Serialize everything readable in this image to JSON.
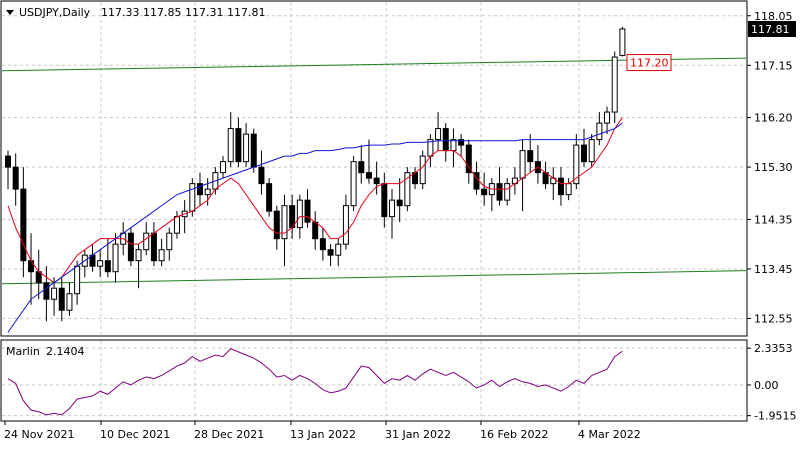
{
  "header": {
    "symbol": "USDJPY,Daily",
    "ohlc": "117.33 117.85 117.31 117.81"
  },
  "price_axis": {
    "ticks": [
      "118.05",
      "117.15",
      "116.20",
      "115.30",
      "114.35",
      "113.45",
      "112.55"
    ],
    "current_price": "117.81",
    "level_label": "117.20"
  },
  "indicator": {
    "name": "Marlin",
    "value": "2.1404",
    "ticks": [
      "2.3353",
      "0.00",
      "-1.9515"
    ]
  },
  "time_axis": {
    "labels": [
      "24 Nov 2021",
      "10 Dec 2021",
      "28 Dec 2021",
      "13 Jan 2022",
      "31 Jan 2022",
      "16 Feb 2022",
      "4 Mar 2022"
    ]
  },
  "colors": {
    "background": "#ffffff",
    "candle": "#000000",
    "ma_fast": "#e8001c",
    "ma_slow": "#1414d2",
    "channel": "#1e7d1e",
    "oscillator": "#800080",
    "level_label": "#e00000",
    "grid": "#c8c8c8"
  },
  "chart_data": [
    {
      "type": "candlestick",
      "symbol": "USDJPY",
      "timeframe": "Daily",
      "ylim": [
        112.25,
        118.3
      ],
      "yticks": [
        118.05,
        117.15,
        116.2,
        115.3,
        114.35,
        113.45,
        112.55
      ],
      "grid": true,
      "overlays": [
        "red moving average",
        "blue moving average",
        "green upper channel line",
        "green lower channel line"
      ],
      "candles": [
        [
          115.5,
          115.6,
          114.9,
          115.3
        ],
        [
          115.3,
          115.55,
          114.6,
          114.9
        ],
        [
          114.9,
          115.3,
          113.3,
          113.6
        ],
        [
          113.6,
          114.1,
          112.8,
          113.4
        ],
        [
          113.4,
          113.8,
          112.9,
          113.2
        ],
        [
          113.2,
          113.5,
          112.5,
          112.9
        ],
        [
          112.9,
          113.3,
          112.6,
          113.1
        ],
        [
          113.1,
          113.3,
          112.5,
          112.7
        ],
        [
          112.7,
          113.2,
          112.6,
          113.0
        ],
        [
          113.0,
          113.6,
          112.8,
          113.5
        ],
        [
          113.5,
          113.8,
          113.3,
          113.7
        ],
        [
          113.7,
          113.9,
          113.4,
          113.5
        ],
        [
          113.5,
          113.8,
          113.3,
          113.6
        ],
        [
          113.6,
          114.0,
          113.3,
          113.4
        ],
        [
          113.4,
          114.1,
          113.2,
          113.9
        ],
        [
          113.9,
          114.3,
          113.7,
          114.1
        ],
        [
          114.1,
          114.2,
          113.5,
          113.6
        ],
        [
          113.6,
          113.9,
          113.1,
          113.8
        ],
        [
          113.8,
          114.3,
          113.7,
          114.1
        ],
        [
          114.1,
          114.3,
          113.5,
          113.6
        ],
        [
          113.6,
          114.0,
          113.5,
          113.8
        ],
        [
          113.8,
          114.2,
          113.6,
          114.1
        ],
        [
          114.1,
          114.5,
          114.0,
          114.4
        ],
        [
          114.4,
          114.7,
          114.1,
          114.5
        ],
        [
          114.5,
          115.1,
          114.4,
          115.0
        ],
        [
          115.0,
          115.2,
          114.6,
          114.8
        ],
        [
          114.8,
          115.1,
          114.6,
          114.9
        ],
        [
          114.9,
          115.3,
          114.8,
          115.2
        ],
        [
          115.2,
          115.5,
          115.1,
          115.4
        ],
        [
          115.4,
          116.3,
          115.3,
          116.0
        ],
        [
          116.0,
          116.2,
          115.3,
          115.4
        ],
        [
          115.4,
          116.1,
          115.3,
          115.9
        ],
        [
          115.9,
          116.0,
          115.2,
          115.3
        ],
        [
          115.3,
          115.6,
          114.8,
          115.0
        ],
        [
          115.0,
          115.1,
          114.4,
          114.5
        ],
        [
          114.5,
          114.6,
          113.8,
          114.0
        ],
        [
          114.0,
          114.8,
          113.5,
          114.6
        ],
        [
          114.6,
          114.8,
          114.0,
          114.2
        ],
        [
          114.2,
          114.8,
          114.0,
          114.7
        ],
        [
          114.7,
          114.9,
          114.2,
          114.3
        ],
        [
          114.3,
          114.5,
          113.8,
          114.0
        ],
        [
          114.0,
          114.2,
          113.6,
          113.8
        ],
        [
          113.8,
          113.9,
          113.5,
          113.7
        ],
        [
          113.7,
          114.0,
          113.5,
          113.9
        ],
        [
          113.9,
          114.8,
          113.8,
          114.6
        ],
        [
          114.6,
          115.5,
          114.5,
          115.4
        ],
        [
          115.4,
          115.7,
          115.0,
          115.2
        ],
        [
          115.2,
          115.8,
          115.0,
          115.1
        ],
        [
          115.1,
          115.4,
          114.8,
          115.0
        ],
        [
          115.0,
          115.2,
          114.2,
          114.4
        ],
        [
          114.4,
          114.9,
          114.0,
          114.7
        ],
        [
          114.7,
          115.1,
          114.3,
          114.6
        ],
        [
          114.6,
          115.3,
          114.5,
          115.2
        ],
        [
          115.2,
          115.3,
          114.9,
          115.0
        ],
        [
          115.0,
          115.6,
          114.9,
          115.5
        ],
        [
          115.5,
          115.9,
          115.3,
          115.8
        ],
        [
          115.8,
          116.3,
          115.6,
          116.0
        ],
        [
          116.0,
          116.1,
          115.4,
          115.6
        ],
        [
          115.6,
          116.0,
          115.3,
          115.8
        ],
        [
          115.8,
          115.9,
          115.5,
          115.7
        ],
        [
          115.7,
          115.8,
          115.0,
          115.2
        ],
        [
          115.2,
          115.4,
          114.8,
          114.9
        ],
        [
          114.9,
          115.2,
          114.6,
          114.8
        ],
        [
          114.8,
          115.1,
          114.5,
          115.0
        ],
        [
          115.0,
          115.3,
          114.6,
          114.7
        ],
        [
          114.7,
          115.1,
          114.6,
          115.0
        ],
        [
          115.0,
          115.3,
          114.8,
          115.1
        ],
        [
          115.1,
          115.8,
          114.5,
          115.6
        ],
        [
          115.6,
          115.9,
          115.2,
          115.4
        ],
        [
          115.4,
          115.7,
          115.0,
          115.2
        ],
        [
          115.2,
          115.4,
          114.9,
          115.0
        ],
        [
          115.0,
          115.3,
          114.7,
          115.1
        ],
        [
          115.1,
          115.3,
          114.6,
          114.8
        ],
        [
          114.8,
          115.1,
          114.7,
          115.0
        ],
        [
          115.0,
          115.9,
          114.9,
          115.7
        ],
        [
          115.7,
          116.0,
          115.3,
          115.4
        ],
        [
          115.4,
          115.9,
          115.3,
          115.8
        ],
        [
          115.8,
          116.3,
          115.7,
          116.1
        ],
        [
          116.1,
          116.4,
          115.9,
          116.3
        ],
        [
          116.3,
          117.4,
          116.1,
          117.3
        ],
        [
          117.33,
          117.85,
          117.31,
          117.81
        ]
      ],
      "moving_averages": [
        {
          "color": "red",
          "values": [
            114.6,
            114.2,
            113.9,
            113.6,
            113.4,
            113.3,
            113.2,
            113.3,
            113.5,
            113.7,
            113.8,
            113.9,
            114.0,
            114.0,
            114.0,
            114.0,
            113.9,
            113.9,
            114.0,
            114.1,
            114.2,
            114.3,
            114.4,
            114.45,
            114.5,
            114.6,
            114.7,
            114.9,
            115.0,
            115.1,
            115.0,
            114.8,
            114.6,
            114.4,
            114.2,
            114.1,
            114.1,
            114.2,
            114.4,
            114.4,
            114.3,
            114.2,
            114.0,
            114.0,
            114.1,
            114.3,
            114.6,
            114.8,
            114.95,
            115.0,
            115.0,
            115.0,
            115.1,
            115.2,
            115.3,
            115.5,
            115.6,
            115.6,
            115.6,
            115.5,
            115.3,
            115.1,
            114.95,
            114.9,
            114.9,
            114.9,
            115.0,
            115.1,
            115.2,
            115.3,
            115.2,
            115.1,
            115.0,
            115.0,
            115.1,
            115.2,
            115.3,
            115.5,
            115.7,
            116.0,
            116.2
          ]
        },
        {
          "color": "blue",
          "values": [
            112.3,
            112.5,
            112.7,
            112.9,
            113.0,
            113.1,
            113.2,
            113.3,
            113.4,
            113.5,
            113.6,
            113.7,
            113.8,
            113.9,
            114.0,
            114.1,
            114.2,
            114.3,
            114.4,
            114.5,
            114.6,
            114.7,
            114.8,
            114.85,
            114.9,
            114.95,
            115.0,
            115.05,
            115.1,
            115.15,
            115.2,
            115.25,
            115.3,
            115.35,
            115.4,
            115.45,
            115.5,
            115.5,
            115.55,
            115.55,
            115.6,
            115.6,
            115.6,
            115.62,
            115.65,
            115.65,
            115.68,
            115.7,
            115.7,
            115.7,
            115.72,
            115.72,
            115.75,
            115.75,
            115.75,
            115.76,
            115.78,
            115.78,
            115.78,
            115.78,
            115.78,
            115.78,
            115.78,
            115.78,
            115.78,
            115.78,
            115.78,
            115.8,
            115.8,
            115.8,
            115.8,
            115.8,
            115.8,
            115.8,
            115.8,
            115.8,
            115.85,
            115.9,
            115.95,
            116.0,
            116.1
          ]
        }
      ],
      "channel_lines": [
        {
          "start": 117.05,
          "end": 117.28
        },
        {
          "start": 113.18,
          "end": 113.42
        }
      ],
      "price_label": 117.81,
      "level": 117.2
    },
    {
      "type": "line",
      "title": "Marlin 2.1404",
      "ylim": [
        -2.1,
        2.6
      ],
      "yticks": [
        2.3353,
        0.0,
        -1.9515
      ],
      "values": [
        0.4,
        0.1,
        -1.0,
        -1.6,
        -1.7,
        -1.9,
        -1.8,
        -1.9,
        -1.5,
        -0.9,
        -0.8,
        -0.7,
        -0.4,
        -0.6,
        -0.2,
        0.2,
        0.0,
        0.3,
        0.5,
        0.4,
        0.6,
        0.9,
        1.2,
        1.4,
        1.8,
        1.5,
        1.7,
        1.9,
        1.8,
        2.3,
        2.1,
        1.9,
        1.7,
        1.4,
        1.0,
        0.5,
        0.6,
        0.3,
        0.6,
        0.4,
        0.1,
        -0.3,
        -0.5,
        -0.4,
        -0.2,
        0.5,
        1.2,
        1.1,
        0.6,
        0.1,
        0.4,
        0.3,
        0.6,
        0.3,
        0.7,
        1.0,
        0.8,
        0.6,
        0.8,
        0.5,
        0.2,
        -0.2,
        0.0,
        0.3,
        -0.1,
        0.2,
        0.4,
        0.2,
        0.1,
        -0.1,
        0.0,
        -0.2,
        -0.4,
        -0.1,
        0.3,
        0.1,
        0.6,
        0.8,
        1.0,
        1.8,
        2.14
      ],
      "color": "purple"
    }
  ]
}
